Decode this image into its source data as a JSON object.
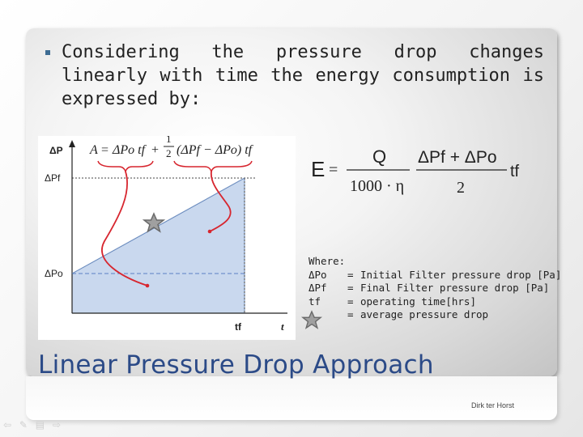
{
  "bullet": {
    "text": "Considering the pressure drop changes linearly with time the energy consumption is expressed by:"
  },
  "chart": {
    "y_axis_label": "ΔP",
    "x_axis_label": "t",
    "dp_f_label": "ΔPf",
    "dp_o_label": "ΔPo",
    "tf_label": "tf",
    "area_formula": {
      "lhs": "A",
      "eq": "=",
      "term1": "ΔPo tf",
      "plus": "+",
      "frac_num": "1",
      "frac_den": "2",
      "term2": "(ΔPf − ΔPo) tf"
    }
  },
  "energy_formula": {
    "lhs": "E",
    "eq": "=",
    "q": "Q",
    "den": "1000 · η",
    "num2": "ΔPf + ΔPo",
    "den2": "2",
    "tf": "tf"
  },
  "legend": {
    "header": "Where:",
    "items": [
      {
        "symbol": "ΔPo",
        "eq": "=",
        "desc": "Initial Filter pressure drop [Pa]"
      },
      {
        "symbol": "ΔPf",
        "eq": "=",
        "desc": "Final Filter pressure drop [Pa]"
      },
      {
        "symbol": "tf",
        "eq": "=",
        "desc": "operating time[hrs]"
      },
      {
        "symbol": "",
        "eq": "=",
        "desc": "average pressure drop"
      }
    ]
  },
  "section_title": "Linear Pressure Drop Approach",
  "author": "Dirk ter Horst",
  "icons": [
    "bullet-square-icon",
    "star-icon",
    "nav-back-icon",
    "nav-forward-icon",
    "nav-edit-icon",
    "nav-menu-icon"
  ],
  "colors": {
    "title": "#2b4a87",
    "bullet": "#3d6c93",
    "area_fill": "#c9d8ee",
    "red_line": "#d7262f"
  }
}
